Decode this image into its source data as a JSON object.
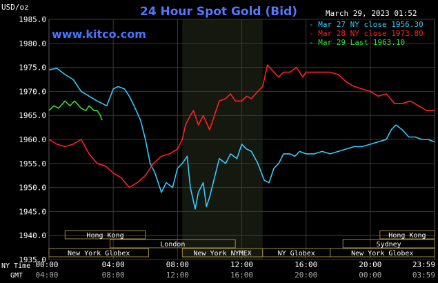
{
  "chart_data": {
    "type": "line",
    "title": "24 Hour Spot Gold (Bid)",
    "watermark": "www.kitco.com",
    "timestamp": "March 29, 2023 01:52",
    "y_unit_label": "USD/oz",
    "ylim": [
      1935.0,
      1985.0
    ],
    "y_ticks": [
      "1985.0",
      "1980.0",
      "1975.0",
      "1970.0",
      "1965.0",
      "1960.0",
      "1955.0",
      "1950.0",
      "1945.0",
      "1940.0",
      "1935.0"
    ],
    "x_range_hours": [
      0,
      24
    ],
    "x_row_ny_label": "NY Time",
    "x_row_gmt_label": "GMT",
    "x_ticks_ny": [
      "00:00",
      "04:00",
      "08:00",
      "12:00",
      "16:00",
      "20:00",
      "23:59"
    ],
    "x_ticks_gmt": [
      "04:00",
      "08:00",
      "12:00",
      "16:00",
      "20:00",
      "00:00",
      "03:59"
    ],
    "legend": [
      {
        "label": "Mar 27 NY close 1956.30",
        "color": "#33ccff"
      },
      {
        "label": "Mar 28 NY close 1973.80",
        "color": "#ff2222"
      },
      {
        "label": "Mar 29 Last 1963.10",
        "color": "#33dd33"
      }
    ],
    "shaded_session_hours": [
      8.3,
      13.3
    ],
    "sessions": {
      "hong_kong": "Hong Kong",
      "london": "London",
      "new_york_globex": "New York Globex",
      "new_york_nymex": "New York NYMEX",
      "ny_globex": "NY Globex",
      "sydney": "Sydney"
    },
    "series": [
      {
        "name": "Mar 27 NY close 1956.30",
        "color": "#33ccff",
        "x": [
          0,
          0.5,
          1,
          1.5,
          2,
          2.5,
          3,
          3.3,
          3.6,
          4,
          4.3,
          4.7,
          5,
          5.3,
          5.7,
          6,
          6.3,
          6.6,
          7,
          7.3,
          7.7,
          8,
          8.3,
          8.6,
          8.8,
          9.1,
          9.3,
          9.6,
          9.8,
          10,
          10.3,
          10.6,
          11,
          11.3,
          11.7,
          12,
          12.3,
          12.6,
          13,
          13.4,
          13.7,
          14,
          14.3,
          14.6,
          15,
          15.3,
          15.6,
          16,
          16.5,
          17,
          17.5,
          18,
          18.5,
          19,
          19.5,
          20,
          20.5,
          21,
          21.3,
          21.6,
          22,
          22.4,
          22.8,
          23.2,
          23.6,
          23.99
        ],
        "y": [
          1974.5,
          1974.8,
          1973.5,
          1972.5,
          1970.0,
          1969.0,
          1968.0,
          1967.5,
          1967.0,
          1970.5,
          1971.0,
          1970.5,
          1969.0,
          1967.0,
          1964.0,
          1960.0,
          1955.0,
          1953.0,
          1949.0,
          1951.0,
          1950.0,
          1954.0,
          1955.0,
          1956.5,
          1950.0,
          1945.5,
          1949.0,
          1951.0,
          1946.0,
          1948.0,
          1952.0,
          1956.0,
          1955.0,
          1957.0,
          1956.0,
          1959.0,
          1958.0,
          1957.5,
          1955.0,
          1951.5,
          1951.0,
          1954.0,
          1955.0,
          1957.0,
          1957.0,
          1956.5,
          1957.5,
          1957.0,
          1957.0,
          1957.5,
          1957.0,
          1957.5,
          1958.0,
          1958.5,
          1958.5,
          1959.0,
          1959.5,
          1960.0,
          1962.0,
          1963.0,
          1962.0,
          1960.5,
          1960.5,
          1960.0,
          1960.0,
          1959.5
        ]
      },
      {
        "name": "Mar 28 NY close 1973.80",
        "color": "#ff2222",
        "x": [
          0,
          0.5,
          1,
          1.5,
          2,
          2.5,
          3,
          3.5,
          4,
          4.5,
          5,
          5.5,
          6,
          6.5,
          7,
          7.5,
          8,
          8.3,
          8.5,
          8.8,
          9,
          9.3,
          9.6,
          10,
          10.3,
          10.6,
          11,
          11.3,
          11.6,
          12,
          12.3,
          12.6,
          13,
          13.3,
          13.6,
          14,
          14.3,
          14.6,
          15,
          15.4,
          15.8,
          16,
          16.5,
          17,
          17.5,
          18,
          18.5,
          19,
          19.5,
          20,
          20.5,
          21,
          21.5,
          22,
          22.5,
          23,
          23.5,
          23.99
        ],
        "y": [
          1960.0,
          1959.0,
          1958.5,
          1959.0,
          1960.0,
          1957.0,
          1955.0,
          1954.5,
          1953.0,
          1952.0,
          1950.0,
          1951.0,
          1952.5,
          1955.0,
          1956.5,
          1957.0,
          1958.0,
          1960.0,
          1963.0,
          1965.0,
          1966.0,
          1963.0,
          1965.0,
          1962.0,
          1965.0,
          1968.0,
          1968.5,
          1969.5,
          1968.0,
          1968.0,
          1969.0,
          1968.5,
          1970.0,
          1971.0,
          1975.5,
          1974.0,
          1973.0,
          1974.0,
          1974.0,
          1975.0,
          1973.0,
          1974.0,
          1974.0,
          1974.0,
          1974.0,
          1973.5,
          1972.0,
          1971.0,
          1970.5,
          1970.0,
          1969.0,
          1969.5,
          1967.5,
          1967.5,
          1968.0,
          1967.0,
          1966.0,
          1966.0
        ]
      },
      {
        "name": "Mar 29 Last 1963.10",
        "color": "#33dd33",
        "x": [
          0,
          0.3,
          0.6,
          1.0,
          1.3,
          1.6,
          2.0,
          2.3,
          2.5,
          2.8,
          3.0,
          3.2,
          3.3
        ],
        "y": [
          1966.0,
          1967.0,
          1966.5,
          1968.0,
          1967.0,
          1968.0,
          1966.5,
          1966.0,
          1967.0,
          1966.0,
          1966.0,
          1965.0,
          1964.0
        ]
      }
    ]
  }
}
